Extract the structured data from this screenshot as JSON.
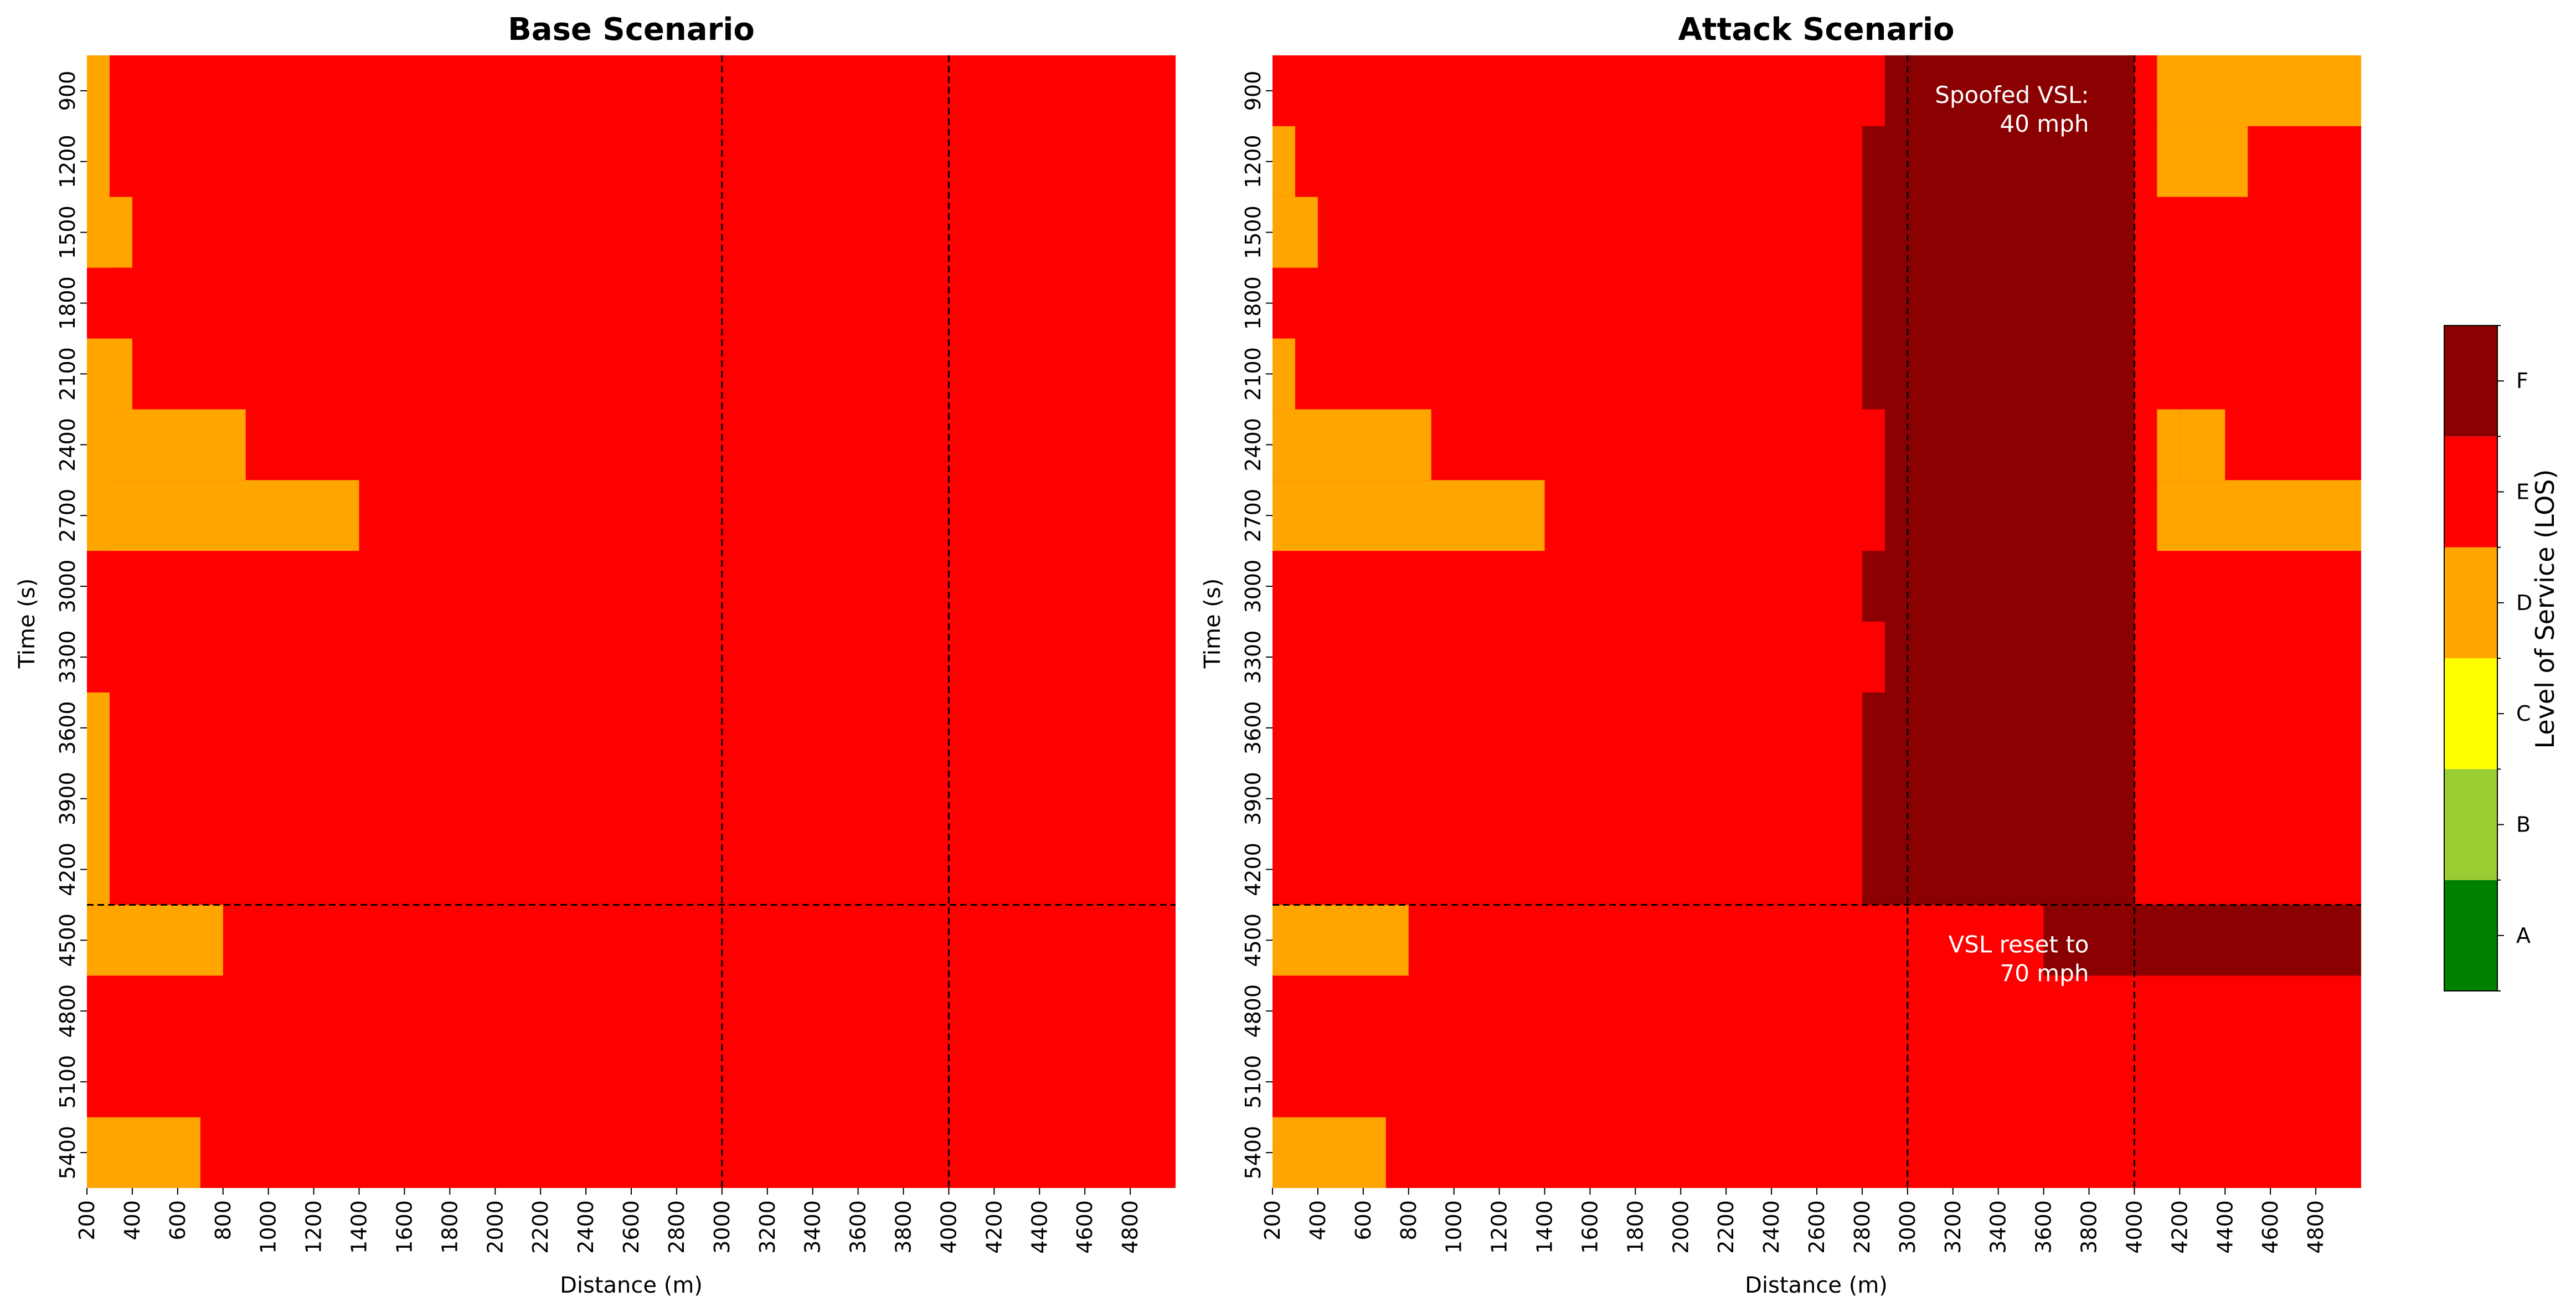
{
  "chart_data": [
    {
      "type": "heatmap",
      "title": "Base Scenario",
      "xlabel": "Distance (m)",
      "ylabel": "Time (s)",
      "x_ticks": [
        "200",
        "400",
        "600",
        "800",
        "1000",
        "1200",
        "1400",
        "1600",
        "1800",
        "2000",
        "2200",
        "2400",
        "2600",
        "2800",
        "3000",
        "3200",
        "3400",
        "3600",
        "3800",
        "4000",
        "4200",
        "4400",
        "4600",
        "4800"
      ],
      "y_ticks": [
        "900",
        "1200",
        "1500",
        "1800",
        "2100",
        "2400",
        "2700",
        "3000",
        "3300",
        "3600",
        "3900",
        "4200",
        "4500",
        "4800",
        "5100",
        "5400"
      ],
      "x_range": [
        200,
        5000
      ],
      "y_range": [
        750,
        5550
      ],
      "vlines": [
        3000,
        4000
      ],
      "hline": 4350,
      "default_los": "E",
      "regions": [
        {
          "x": [
            200,
            300
          ],
          "y": [
            750,
            4350
          ],
          "los": "D"
        },
        {
          "x": [
            300,
            400
          ],
          "y": [
            1350,
            1650
          ],
          "los": "D"
        },
        {
          "x": [
            200,
            400
          ],
          "y": [
            1650,
            1950
          ],
          "los": "E"
        },
        {
          "x": [
            300,
            400
          ],
          "y": [
            1950,
            2250
          ],
          "los": "D"
        },
        {
          "x": [
            300,
            900
          ],
          "y": [
            2250,
            2550
          ],
          "los": "D"
        },
        {
          "x": [
            300,
            1400
          ],
          "y": [
            2550,
            2850
          ],
          "los": "D"
        },
        {
          "x": [
            200,
            300
          ],
          "y": [
            2850,
            3450
          ],
          "los": "E"
        },
        {
          "x": [
            200,
            800
          ],
          "y": [
            4350,
            4650
          ],
          "los": "D"
        },
        {
          "x": [
            200,
            700
          ],
          "y": [
            5250,
            5550
          ],
          "los": "D"
        }
      ],
      "annotations": []
    },
    {
      "type": "heatmap",
      "title": "Attack Scenario",
      "xlabel": "Distance (m)",
      "ylabel": "Time (s)",
      "x_ticks": [
        "200",
        "400",
        "600",
        "800",
        "1000",
        "1200",
        "1400",
        "1600",
        "1800",
        "2000",
        "2200",
        "2400",
        "2600",
        "2800",
        "3000",
        "3200",
        "3400",
        "3600",
        "3800",
        "4000",
        "4200",
        "4400",
        "4600",
        "4800"
      ],
      "y_ticks": [
        "900",
        "1200",
        "1500",
        "1800",
        "2100",
        "2400",
        "2700",
        "3000",
        "3300",
        "3600",
        "3900",
        "4200",
        "4500",
        "4800",
        "5100",
        "5400"
      ],
      "x_range": [
        200,
        5000
      ],
      "y_range": [
        750,
        5550
      ],
      "vlines": [
        3000,
        4000
      ],
      "hline": 4350,
      "default_los": "E",
      "regions": [
        {
          "x": [
            200,
            300
          ],
          "y": [
            1050,
            1350
          ],
          "los": "D"
        },
        {
          "x": [
            200,
            400
          ],
          "y": [
            1350,
            1650
          ],
          "los": "D"
        },
        {
          "x": [
            200,
            300
          ],
          "y": [
            1950,
            2250
          ],
          "los": "D"
        },
        {
          "x": [
            200,
            900
          ],
          "y": [
            2250,
            2550
          ],
          "los": "D"
        },
        {
          "x": [
            200,
            1400
          ],
          "y": [
            2550,
            2850
          ],
          "los": "D"
        },
        {
          "x": [
            2900,
            4000
          ],
          "y": [
            750,
            4350
          ],
          "los": "F"
        },
        {
          "x": [
            2800,
            2900
          ],
          "y": [
            1050,
            2250
          ],
          "los": "F"
        },
        {
          "x": [
            2800,
            2900
          ],
          "y": [
            2850,
            3150
          ],
          "los": "F"
        },
        {
          "x": [
            2800,
            2900
          ],
          "y": [
            3450,
            4350
          ],
          "los": "F"
        },
        {
          "x": [
            4100,
            5000
          ],
          "y": [
            750,
            1050
          ],
          "los": "D"
        },
        {
          "x": [
            4100,
            4500
          ],
          "y": [
            1050,
            1350
          ],
          "los": "D"
        },
        {
          "x": [
            4200,
            4400
          ],
          "y": [
            2250,
            2550
          ],
          "los": "D"
        },
        {
          "x": [
            4100,
            5000
          ],
          "y": [
            2550,
            2850
          ],
          "los": "D"
        },
        {
          "x": [
            4100,
            4200
          ],
          "y": [
            2250,
            2550
          ],
          "los": "D"
        },
        {
          "x": [
            200,
            800
          ],
          "y": [
            4350,
            4650
          ],
          "los": "D"
        },
        {
          "x": [
            3600,
            5000
          ],
          "y": [
            4350,
            4650
          ],
          "los": "F"
        },
        {
          "x": [
            200,
            700
          ],
          "y": [
            5250,
            5550
          ],
          "los": "D"
        }
      ],
      "annotations": [
        {
          "lines": [
            "Spoofed VSL:",
            "40 mph"
          ],
          "x": 3800,
          "y": 900
        },
        {
          "lines": [
            "VSL reset to",
            "70 mph"
          ],
          "x": 3800,
          "y": 4500
        }
      ]
    }
  ],
  "colorbar": {
    "label": "Level of Service (LOS)",
    "levels": [
      "A",
      "B",
      "C",
      "D",
      "E",
      "F"
    ],
    "colors": {
      "A": "#008000",
      "B": "#9ACD32",
      "C": "#FFFF00",
      "D": "#FFA500",
      "E": "#FF0000",
      "F": "#8B0000"
    }
  }
}
